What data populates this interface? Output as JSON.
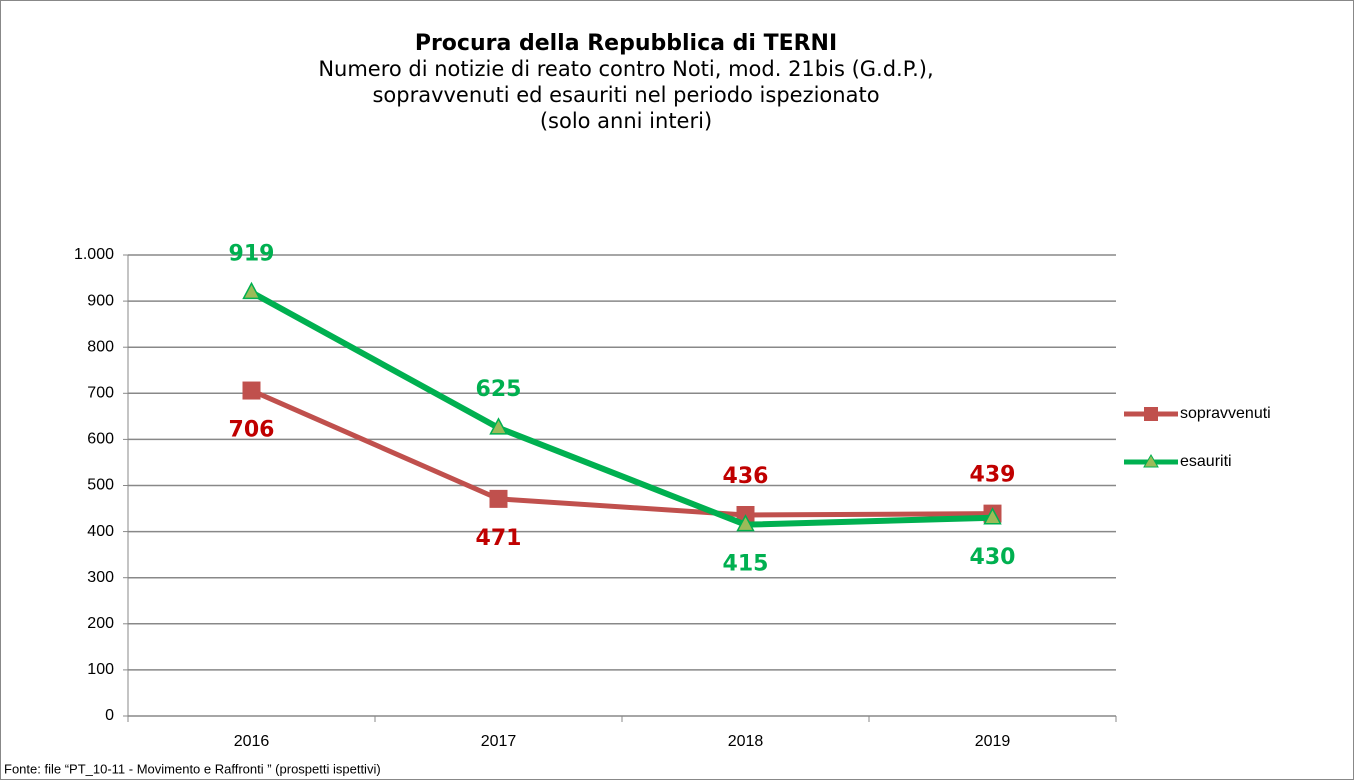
{
  "chart_data": {
    "type": "line",
    "title": "Procura della Repubblica di TERNI",
    "subtitle": [
      "Numero di notizie di reato contro Noti, mod. 21bis (G.d.P.),",
      "sopravvenuti ed esauriti nel periodo ispezionato",
      "(solo anni interi)"
    ],
    "categories": [
      "2016",
      "2017",
      "2018",
      "2019"
    ],
    "series": [
      {
        "name": "sopravvenuti",
        "color": "#c0504d",
        "label_color": "#c00000",
        "values": [
          706,
          471,
          436,
          439
        ]
      },
      {
        "name": "esauriti",
        "color": "#00b050",
        "label_color": "#00b050",
        "values": [
          919,
          625,
          415,
          430
        ]
      }
    ],
    "ylim": [
      0,
      1000
    ],
    "yticks": [
      0,
      100,
      200,
      300,
      400,
      500,
      600,
      700,
      800,
      900,
      {
        "value": 1000,
        "label": "1.000"
      }
    ],
    "grid": true,
    "legend": "right",
    "source": "Fonte: file “PT_10-11 - Movimento e Raffronti ” (prospetti ispettivi)"
  }
}
